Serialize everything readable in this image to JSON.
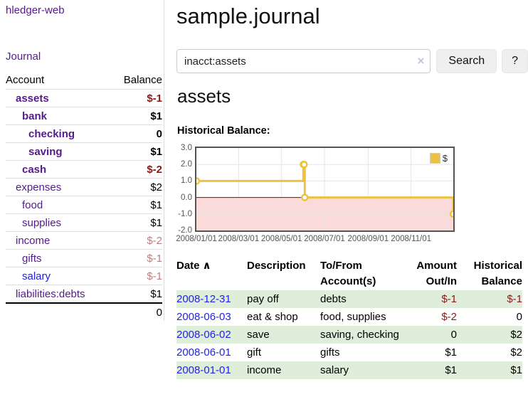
{
  "app": {
    "brand": "hledger-web",
    "nav_journal": "Journal"
  },
  "sidebar": {
    "header": {
      "account": "Account",
      "balance": "Balance"
    },
    "accounts": [
      {
        "name": "assets",
        "balance": "$-1",
        "depth": 1,
        "bold": true,
        "neg": "strong"
      },
      {
        "name": "bank",
        "balance": "$1",
        "depth": 2,
        "bold": true,
        "neg": "none"
      },
      {
        "name": "checking",
        "balance": "0",
        "depth": 3,
        "bold": true,
        "neg": "none"
      },
      {
        "name": "saving",
        "balance": "$1",
        "depth": 3,
        "bold": true,
        "neg": "none"
      },
      {
        "name": "cash",
        "balance": "$-2",
        "depth": 2,
        "bold": true,
        "neg": "strong"
      },
      {
        "name": "expenses",
        "balance": "$2",
        "depth": 1,
        "bold": false,
        "neg": "none"
      },
      {
        "name": "food",
        "balance": "$1",
        "depth": 2,
        "bold": false,
        "neg": "none"
      },
      {
        "name": "supplies",
        "balance": "$1",
        "depth": 2,
        "bold": false,
        "neg": "none"
      },
      {
        "name": "income",
        "balance": "$-2",
        "depth": 1,
        "bold": false,
        "neg": "muted"
      },
      {
        "name": "gifts",
        "balance": "$-1",
        "depth": 2,
        "bold": false,
        "neg": "muted"
      },
      {
        "name": "salary",
        "balance": "$-1",
        "depth": 2,
        "bold": false,
        "neg": "muted",
        "unvisited": true
      },
      {
        "name": "liabilities:debts",
        "balance": "$1",
        "depth": 1,
        "bold": false,
        "neg": "none"
      }
    ],
    "total": "0"
  },
  "main": {
    "title": "sample.journal",
    "search": {
      "value": "inacct:assets",
      "clear_icon": "×",
      "search_label": "Search",
      "help_label": "?"
    },
    "account_heading": "assets",
    "chart_title": "Historical Balance:"
  },
  "chart_data": {
    "type": "line",
    "title": "Historical Balance:",
    "step": true,
    "x_range": [
      "2008-01-01",
      "2008-12-31"
    ],
    "xticks": [
      "2008/01/01",
      "2008/03/01",
      "2008/05/01",
      "2008/07/01",
      "2008/09/01",
      "2008/11/01"
    ],
    "yticks": [
      3.0,
      2.0,
      1.0,
      0.0,
      -1.0,
      -2.0
    ],
    "ylim": [
      -2,
      3
    ],
    "series": [
      {
        "name": "$",
        "points": [
          [
            "2008-01-01",
            1
          ],
          [
            "2008-06-01",
            2
          ],
          [
            "2008-06-02",
            2
          ],
          [
            "2008-06-03",
            0
          ],
          [
            "2008-12-31",
            -1
          ]
        ]
      }
    ],
    "legend": {
      "label": "$",
      "position": "top-right"
    },
    "negative_region_shaded": true,
    "colors": {
      "series": "#edc240",
      "zero_line": "#8b0000",
      "negative_fill": "#fbdada",
      "grid": "#e6e6e6",
      "border": "#545454",
      "tick_text": "#545454"
    }
  },
  "register": {
    "columns": [
      "Date",
      "Description",
      "To/From Account(s)",
      "Amount Out/In",
      "Historical Balance"
    ],
    "sort_icon": "∧",
    "rows": [
      {
        "date": "2008-12-31",
        "description": "pay off",
        "accounts": "debts",
        "amount": "$-1",
        "balance": "$-1"
      },
      {
        "date": "2008-06-03",
        "description": "eat & shop",
        "accounts": "food, supplies",
        "amount": "$-2",
        "balance": "0"
      },
      {
        "date": "2008-06-02",
        "description": "save",
        "accounts": "saving, checking",
        "amount": "0",
        "balance": "$2"
      },
      {
        "date": "2008-06-01",
        "description": "gift",
        "accounts": "gifts",
        "amount": "$1",
        "balance": "$2"
      },
      {
        "date": "2008-01-01",
        "description": "income",
        "accounts": "salary",
        "amount": "$1",
        "balance": "$1"
      }
    ]
  },
  "colors": {
    "link_purple": "#551a8b",
    "link_blue": "#2222dd",
    "date_link_blue": "#2222ee",
    "negative_strong": "#8b1818",
    "negative_muted": "#bd7d7d",
    "row_stripe_green": "#dfeeda",
    "button_bg": "#efefef"
  }
}
